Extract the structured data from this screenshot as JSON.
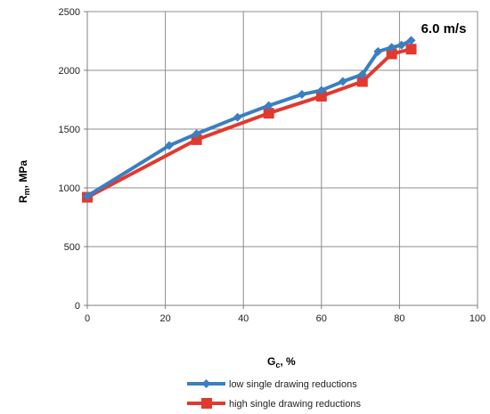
{
  "chart_data": {
    "type": "line",
    "title": "",
    "annotation": "6.0 m/s",
    "xlabel": {
      "main": "G",
      "sub": "c",
      "suffix": ", %"
    },
    "ylabel": {
      "main": "R",
      "sub": "m",
      "suffix": ", MPa"
    },
    "xlim": [
      0,
      100
    ],
    "ylim": [
      0,
      2500
    ],
    "xticks": [
      0,
      20,
      40,
      60,
      80,
      100
    ],
    "yticks": [
      0,
      500,
      1000,
      1500,
      2000,
      2500
    ],
    "grid": true,
    "legend": "bottom",
    "series": [
      {
        "name": "low single drawing reductions",
        "color": "#3a7fc1",
        "marker": "diamond",
        "x": [
          0,
          21,
          28,
          38.5,
          46.5,
          55,
          60,
          65.5,
          70.5,
          74.5,
          78,
          80.5,
          83
        ],
        "y": [
          930,
          1360,
          1460,
          1600,
          1700,
          1795,
          1830,
          1905,
          1965,
          2160,
          2195,
          2215,
          2255
        ]
      },
      {
        "name": "high single drawing reductions",
        "color": "#e2392f",
        "marker": "square",
        "x": [
          0,
          28,
          46.5,
          60,
          70.5,
          78,
          83
        ],
        "y": [
          920,
          1410,
          1635,
          1780,
          1905,
          2140,
          2180
        ]
      }
    ]
  }
}
